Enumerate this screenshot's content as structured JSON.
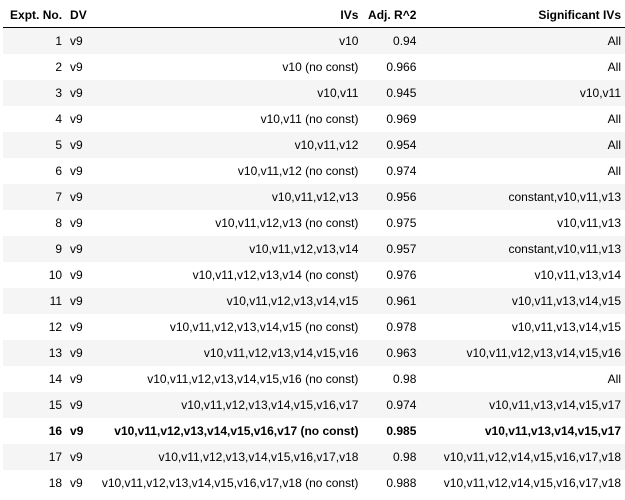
{
  "headers": {
    "expt_no": "Expt. No.",
    "dv": "DV",
    "ivs": "IVs",
    "adj_r2": "Adj. R^2",
    "sig_ivs": "Significant IVs"
  },
  "rows": [
    {
      "no": "1",
      "dv": "v9",
      "ivs": "v10",
      "r2": "0.94",
      "sig": "All"
    },
    {
      "no": "2",
      "dv": "v9",
      "ivs": "v10 (no const)",
      "r2": "0.966",
      "sig": "All"
    },
    {
      "no": "3",
      "dv": "v9",
      "ivs": "v10,v11",
      "r2": "0.945",
      "sig": "v10,v11"
    },
    {
      "no": "4",
      "dv": "v9",
      "ivs": "v10,v11 (no const)",
      "r2": "0.969",
      "sig": "All"
    },
    {
      "no": "5",
      "dv": "v9",
      "ivs": "v10,v11,v12",
      "r2": "0.954",
      "sig": "All"
    },
    {
      "no": "6",
      "dv": "v9",
      "ivs": "v10,v11,v12 (no const)",
      "r2": "0.974",
      "sig": "All"
    },
    {
      "no": "7",
      "dv": "v9",
      "ivs": "v10,v11,v12,v13",
      "r2": "0.956",
      "sig": "constant,v10,v11,v13"
    },
    {
      "no": "8",
      "dv": "v9",
      "ivs": "v10,v11,v12,v13 (no const)",
      "r2": "0.975",
      "sig": "v10,v11,v13"
    },
    {
      "no": "9",
      "dv": "v9",
      "ivs": "v10,v11,v12,v13,v14",
      "r2": "0.957",
      "sig": "constant,v10,v11,v13"
    },
    {
      "no": "10",
      "dv": "v9",
      "ivs": "v10,v11,v12,v13,v14 (no const)",
      "r2": "0.976",
      "sig": "v10,v11,v13,v14"
    },
    {
      "no": "11",
      "dv": "v9",
      "ivs": "v10,v11,v12,v13,v14,v15",
      "r2": "0.961",
      "sig": "v10,v11,v13,v14,v15"
    },
    {
      "no": "12",
      "dv": "v9",
      "ivs": "v10,v11,v12,v13,v14,v15 (no const)",
      "r2": "0.978",
      "sig": "v10,v11,v13,v14,v15"
    },
    {
      "no": "13",
      "dv": "v9",
      "ivs": "v10,v11,v12,v13,v14,v15,v16",
      "r2": "0.963",
      "sig": "v10,v11,v12,v13,v14,v15,v16"
    },
    {
      "no": "14",
      "dv": "v9",
      "ivs": "v10,v11,v12,v13,v14,v15,v16 (no const)",
      "r2": "0.98",
      "sig": "All"
    },
    {
      "no": "15",
      "dv": "v9",
      "ivs": "v10,v11,v12,v13,v14,v15,v16,v17",
      "r2": "0.974",
      "sig": "v10,v11,v13,v14,v15,v17"
    },
    {
      "no": "16",
      "dv": "v9",
      "ivs": "v10,v11,v12,v13,v14,v15,v16,v17 (no const)",
      "r2": "0.985",
      "sig": "v10,v11,v13,v14,v15,v17"
    },
    {
      "no": "17",
      "dv": "v9",
      "ivs": "v10,v11,v12,v13,v14,v15,v16,v17,v18",
      "r2": "0.98",
      "sig": "v10,v11,v12,v14,v15,v16,v17,v18"
    },
    {
      "no": "18",
      "dv": "v9",
      "ivs": "v10,v11,v12,v13,v14,v15,v16,v17,v18 (no const)",
      "r2": "0.988",
      "sig": "v10,v11,v12,v14,v15,v16,v17,v18"
    }
  ],
  "highlighted_row": "16"
}
